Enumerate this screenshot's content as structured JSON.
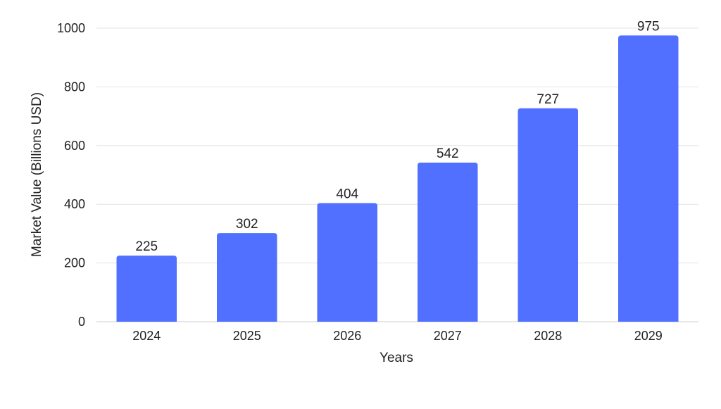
{
  "chart_data": {
    "type": "bar",
    "title": "",
    "xlabel": "Years",
    "ylabel": "Market Value (Billions USD)",
    "categories": [
      "2024",
      "2025",
      "2026",
      "2027",
      "2028",
      "2029"
    ],
    "values": [
      225,
      302,
      404,
      542,
      727,
      975
    ],
    "data_labels": [
      "225",
      "302",
      "404",
      "542",
      "727",
      "975"
    ],
    "ylim": [
      0,
      1000
    ],
    "yticks": [
      0,
      200,
      400,
      600,
      800,
      1000
    ],
    "ytick_labels": [
      "0",
      "200",
      "400",
      "600",
      "800",
      "1000"
    ],
    "grid": true,
    "legend": "none",
    "bar_color": "#5170FF"
  }
}
